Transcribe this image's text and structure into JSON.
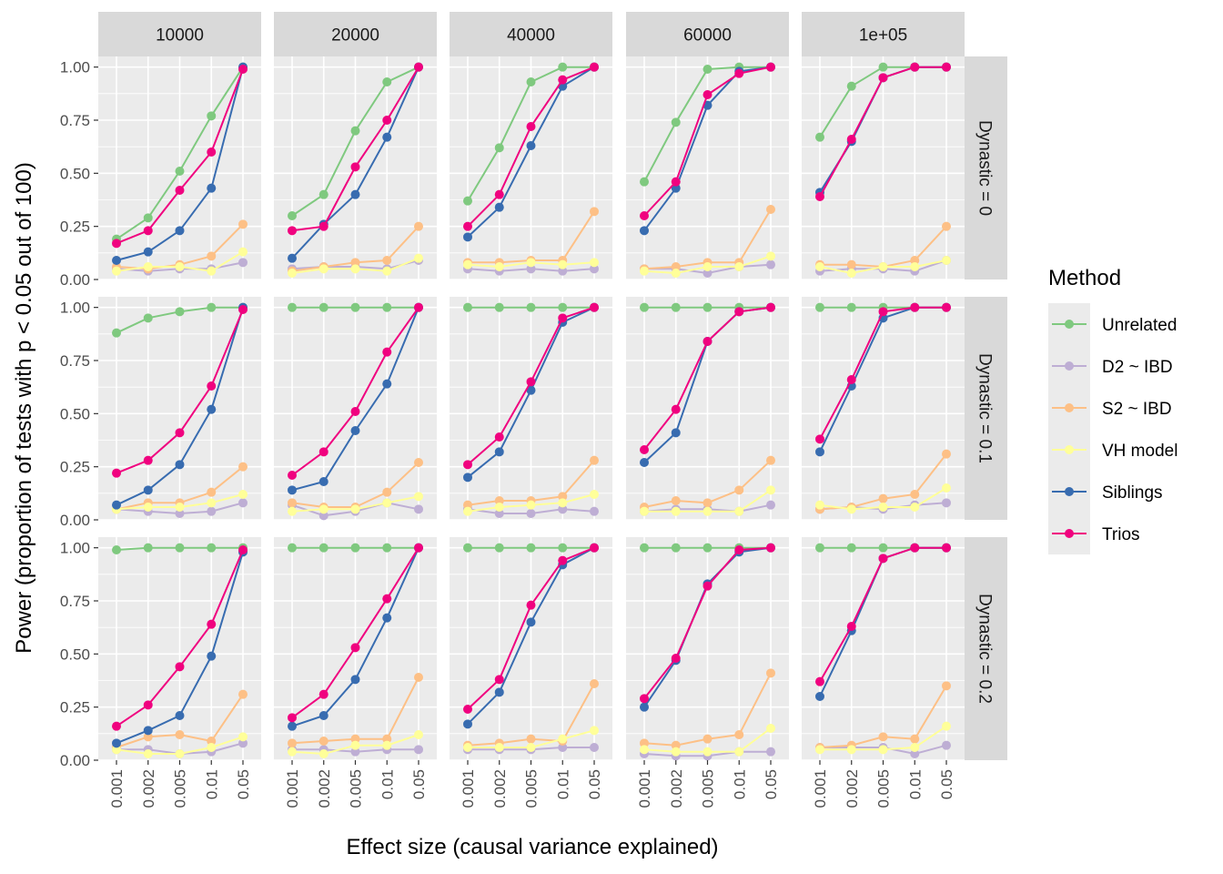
{
  "chart_data": {
    "type": "line",
    "xlabel": "Effect size (causal variance explained)",
    "ylabel": "Power (proportion of tests with p < 0.05 out of 100)",
    "x_categories": [
      "0.001",
      "0.002",
      "0.005",
      "0.01",
      "0.05"
    ],
    "y_ticks": [
      "0.00",
      "0.25",
      "0.50",
      "0.75",
      "1.00"
    ],
    "ylim": [
      0,
      1.05
    ],
    "grid": true,
    "legend_title": "Method",
    "legend_position": "right",
    "column_facets": [
      "10000",
      "20000",
      "40000",
      "60000",
      "1e+05"
    ],
    "row_facets": [
      "Dynastic = 0",
      "Dynastic = 0.1",
      "Dynastic = 0.2"
    ],
    "series": [
      {
        "name": "Unrelated",
        "color": "#7fc97f"
      },
      {
        "name": "D2 ~ IBD",
        "color": "#beaed4"
      },
      {
        "name": "S2 ~ IBD",
        "color": "#fdc086"
      },
      {
        "name": "VH model",
        "color": "#ffff99"
      },
      {
        "name": "Siblings",
        "color": "#386cb0"
      },
      {
        "name": "Trios",
        "color": "#f0027f"
      }
    ],
    "panels": [
      [
        {
          "Unrelated": [
            0.19,
            0.29,
            0.51,
            0.77,
            1.0
          ],
          "D2 ~ IBD": [
            0.05,
            0.04,
            0.05,
            0.05,
            0.08
          ],
          "S2 ~ IBD": [
            0.06,
            0.05,
            0.07,
            0.11,
            0.26
          ],
          "VH model": [
            0.04,
            0.06,
            0.06,
            0.04,
            0.13
          ],
          "Siblings": [
            0.09,
            0.13,
            0.23,
            0.43,
            1.0
          ],
          "Trios": [
            0.17,
            0.23,
            0.42,
            0.6,
            0.99
          ]
        },
        {
          "Unrelated": [
            0.3,
            0.4,
            0.7,
            0.93,
            1.0
          ],
          "D2 ~ IBD": [
            0.05,
            0.06,
            0.06,
            0.05,
            0.09
          ],
          "S2 ~ IBD": [
            0.04,
            0.06,
            0.08,
            0.09,
            0.25
          ],
          "VH model": [
            0.03,
            0.05,
            0.05,
            0.04,
            0.1
          ],
          "Siblings": [
            0.1,
            0.26,
            0.4,
            0.67,
            1.0
          ],
          "Trios": [
            0.23,
            0.25,
            0.53,
            0.75,
            1.0
          ]
        },
        {
          "Unrelated": [
            0.37,
            0.62,
            0.93,
            1.0,
            1.0
          ],
          "D2 ~ IBD": [
            0.05,
            0.04,
            0.05,
            0.04,
            0.05
          ],
          "S2 ~ IBD": [
            0.08,
            0.08,
            0.09,
            0.09,
            0.32
          ],
          "VH model": [
            0.07,
            0.06,
            0.08,
            0.07,
            0.08
          ],
          "Siblings": [
            0.2,
            0.34,
            0.63,
            0.91,
            1.0
          ],
          "Trios": [
            0.25,
            0.4,
            0.72,
            0.94,
            1.0
          ]
        },
        {
          "Unrelated": [
            0.46,
            0.74,
            0.99,
            1.0,
            1.0
          ],
          "D2 ~ IBD": [
            0.05,
            0.05,
            0.03,
            0.06,
            0.07
          ],
          "S2 ~ IBD": [
            0.05,
            0.06,
            0.08,
            0.08,
            0.33
          ],
          "VH model": [
            0.04,
            0.03,
            0.06,
            0.06,
            0.11
          ],
          "Siblings": [
            0.23,
            0.43,
            0.82,
            0.98,
            1.0
          ],
          "Trios": [
            0.3,
            0.46,
            0.87,
            0.97,
            1.0
          ]
        },
        {
          "Unrelated": [
            0.67,
            0.91,
            1.0,
            1.0,
            1.0
          ],
          "D2 ~ IBD": [
            0.04,
            0.05,
            0.05,
            0.04,
            0.09
          ],
          "S2 ~ IBD": [
            0.07,
            0.07,
            0.06,
            0.09,
            0.25
          ],
          "VH model": [
            0.06,
            0.03,
            0.06,
            0.06,
            0.09
          ],
          "Siblings": [
            0.41,
            0.65,
            0.95,
            1.0,
            1.0
          ],
          "Trios": [
            0.39,
            0.66,
            0.95,
            1.0,
            1.0
          ]
        }
      ],
      [
        {
          "Unrelated": [
            0.88,
            0.95,
            0.98,
            1.0,
            1.0
          ],
          "D2 ~ IBD": [
            0.05,
            0.04,
            0.03,
            0.04,
            0.08
          ],
          "S2 ~ IBD": [
            0.05,
            0.08,
            0.08,
            0.13,
            0.25
          ],
          "VH model": [
            0.05,
            0.06,
            0.06,
            0.08,
            0.12
          ],
          "Siblings": [
            0.07,
            0.14,
            0.26,
            0.52,
            1.0
          ],
          "Trios": [
            0.22,
            0.28,
            0.41,
            0.63,
            0.99
          ]
        },
        {
          "Unrelated": [
            1.0,
            1.0,
            1.0,
            1.0,
            1.0
          ],
          "D2 ~ IBD": [
            0.07,
            0.02,
            0.04,
            0.08,
            0.05
          ],
          "S2 ~ IBD": [
            0.08,
            0.06,
            0.06,
            0.13,
            0.27
          ],
          "VH model": [
            0.04,
            0.05,
            0.05,
            0.08,
            0.11
          ],
          "Siblings": [
            0.14,
            0.18,
            0.42,
            0.64,
            1.0
          ],
          "Trios": [
            0.21,
            0.32,
            0.51,
            0.79,
            1.0
          ]
        },
        {
          "Unrelated": [
            1.0,
            1.0,
            1.0,
            1.0,
            1.0
          ],
          "D2 ~ IBD": [
            0.05,
            0.03,
            0.03,
            0.05,
            0.04
          ],
          "S2 ~ IBD": [
            0.07,
            0.09,
            0.09,
            0.11,
            0.28
          ],
          "VH model": [
            0.04,
            0.06,
            0.07,
            0.08,
            0.12
          ],
          "Siblings": [
            0.2,
            0.32,
            0.61,
            0.93,
            1.0
          ],
          "Trios": [
            0.26,
            0.39,
            0.65,
            0.95,
            1.0
          ]
        },
        {
          "Unrelated": [
            1.0,
            1.0,
            1.0,
            1.0,
            1.0
          ],
          "D2 ~ IBD": [
            0.04,
            0.05,
            0.05,
            0.04,
            0.07
          ],
          "S2 ~ IBD": [
            0.06,
            0.09,
            0.08,
            0.14,
            0.28
          ],
          "VH model": [
            0.04,
            0.04,
            0.04,
            0.04,
            0.14
          ],
          "Siblings": [
            0.27,
            0.41,
            0.84,
            0.98,
            1.0
          ],
          "Trios": [
            0.33,
            0.52,
            0.84,
            0.98,
            1.0
          ]
        },
        {
          "Unrelated": [
            1.0,
            1.0,
            1.0,
            1.0,
            1.0
          ],
          "D2 ~ IBD": [
            0.05,
            0.06,
            0.05,
            0.07,
            0.08
          ],
          "S2 ~ IBD": [
            0.05,
            0.06,
            0.1,
            0.12,
            0.31
          ],
          "VH model": [
            0.07,
            0.05,
            0.06,
            0.06,
            0.15
          ],
          "Siblings": [
            0.32,
            0.63,
            0.95,
            1.0,
            1.0
          ],
          "Trios": [
            0.38,
            0.66,
            0.98,
            1.0,
            1.0
          ]
        }
      ],
      [
        {
          "Unrelated": [
            0.99,
            1.0,
            1.0,
            1.0,
            1.0
          ],
          "D2 ~ IBD": [
            0.05,
            0.05,
            0.03,
            0.04,
            0.08
          ],
          "S2 ~ IBD": [
            0.06,
            0.11,
            0.12,
            0.09,
            0.31
          ],
          "VH model": [
            0.05,
            0.03,
            0.03,
            0.06,
            0.11
          ],
          "Siblings": [
            0.08,
            0.14,
            0.21,
            0.49,
            0.98
          ],
          "Trios": [
            0.16,
            0.26,
            0.44,
            0.64,
            0.99
          ]
        },
        {
          "Unrelated": [
            1.0,
            1.0,
            1.0,
            1.0,
            1.0
          ],
          "D2 ~ IBD": [
            0.05,
            0.05,
            0.04,
            0.05,
            0.05
          ],
          "S2 ~ IBD": [
            0.08,
            0.09,
            0.1,
            0.1,
            0.39
          ],
          "VH model": [
            0.04,
            0.03,
            0.07,
            0.07,
            0.12
          ],
          "Siblings": [
            0.16,
            0.21,
            0.38,
            0.67,
            1.0
          ],
          "Trios": [
            0.2,
            0.31,
            0.53,
            0.76,
            1.0
          ]
        },
        {
          "Unrelated": [
            1.0,
            1.0,
            1.0,
            1.0,
            1.0
          ],
          "D2 ~ IBD": [
            0.05,
            0.05,
            0.05,
            0.06,
            0.06
          ],
          "S2 ~ IBD": [
            0.07,
            0.08,
            0.1,
            0.09,
            0.36
          ],
          "VH model": [
            0.06,
            0.06,
            0.06,
            0.1,
            0.14
          ],
          "Siblings": [
            0.17,
            0.32,
            0.65,
            0.92,
            1.0
          ],
          "Trios": [
            0.24,
            0.38,
            0.73,
            0.94,
            1.0
          ]
        },
        {
          "Unrelated": [
            1.0,
            1.0,
            1.0,
            1.0,
            1.0
          ],
          "D2 ~ IBD": [
            0.03,
            0.02,
            0.02,
            0.04,
            0.04
          ],
          "S2 ~ IBD": [
            0.08,
            0.07,
            0.1,
            0.12,
            0.41
          ],
          "VH model": [
            0.05,
            0.04,
            0.04,
            0.04,
            0.15
          ],
          "Siblings": [
            0.25,
            0.47,
            0.83,
            0.98,
            1.0
          ],
          "Trios": [
            0.29,
            0.48,
            0.82,
            0.99,
            1.0
          ]
        },
        {
          "Unrelated": [
            1.0,
            1.0,
            1.0,
            1.0,
            1.0
          ],
          "D2 ~ IBD": [
            0.06,
            0.06,
            0.06,
            0.03,
            0.07
          ],
          "S2 ~ IBD": [
            0.06,
            0.07,
            0.11,
            0.1,
            0.35
          ],
          "VH model": [
            0.05,
            0.05,
            0.05,
            0.06,
            0.16
          ],
          "Siblings": [
            0.3,
            0.61,
            0.95,
            1.0,
            1.0
          ],
          "Trios": [
            0.37,
            0.63,
            0.95,
            1.0,
            1.0
          ]
        }
      ]
    ]
  }
}
